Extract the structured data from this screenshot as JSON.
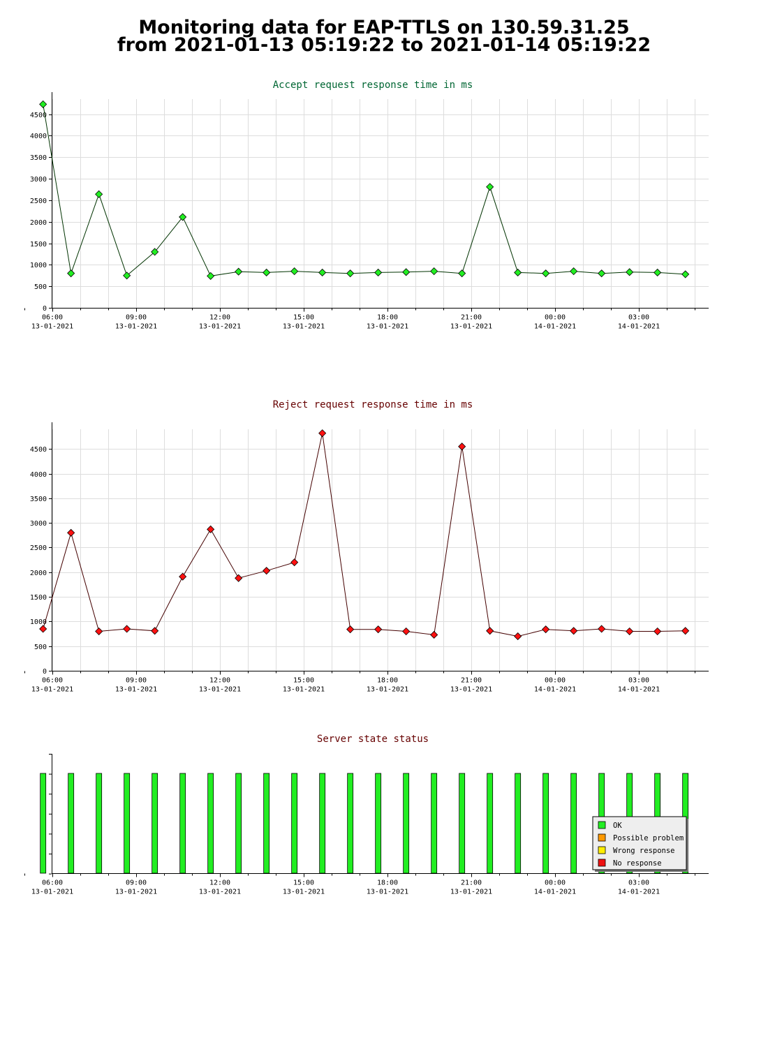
{
  "page": {
    "title_line1": "Monitoring data for EAP-TTLS on 130.59.31.25",
    "title_line2": "from 2021-01-13 05:19:22 to 2021-01-14 05:19:22"
  },
  "colors": {
    "accept_line": "#003300",
    "accept_marker": "#22ee22",
    "accept_title": "#006633",
    "reject_line": "#440000",
    "reject_marker": "#ff1111",
    "reject_title": "#660000",
    "status_title": "#660000",
    "ok": "#22ee22",
    "possible_problem": "#ff9900",
    "wrong_response": "#ffee00",
    "no_response": "#ee1111"
  },
  "chart_data": [
    {
      "id": "accept",
      "type": "line",
      "title": "Accept request response time in ms",
      "x": [
        "2021-01-13 05:40",
        "2021-01-13 06:40",
        "2021-01-13 07:40",
        "2021-01-13 08:40",
        "2021-01-13 09:40",
        "2021-01-13 10:40",
        "2021-01-13 11:40",
        "2021-01-13 12:40",
        "2021-01-13 13:40",
        "2021-01-13 14:40",
        "2021-01-13 15:40",
        "2021-01-13 16:40",
        "2021-01-13 17:40",
        "2021-01-13 18:40",
        "2021-01-13 19:40",
        "2021-01-13 20:40",
        "2021-01-13 21:40",
        "2021-01-13 22:40",
        "2021-01-13 23:40",
        "2021-01-14 00:40",
        "2021-01-14 01:40",
        "2021-01-14 02:40",
        "2021-01-14 03:40",
        "2021-01-14 04:40"
      ],
      "values": [
        4730,
        800,
        2640,
        750,
        1300,
        2110,
        740,
        840,
        820,
        850,
        820,
        800,
        820,
        830,
        850,
        800,
        2810,
        820,
        800,
        850,
        800,
        830,
        820,
        780
      ],
      "ylim": [
        0,
        4850
      ],
      "yticks": [
        0,
        500,
        1000,
        1500,
        2000,
        2500,
        3000,
        3500,
        4000,
        4500
      ],
      "xticks": [
        {
          "time": "06:00",
          "date": "13-01-2021"
        },
        {
          "time": "09:00",
          "date": "13-01-2021"
        },
        {
          "time": "12:00",
          "date": "13-01-2021"
        },
        {
          "time": "15:00",
          "date": "13-01-2021"
        },
        {
          "time": "18:00",
          "date": "13-01-2021"
        },
        {
          "time": "21:00",
          "date": "13-01-2021"
        },
        {
          "time": "00:00",
          "date": "14-01-2021"
        },
        {
          "time": "03:00",
          "date": "14-01-2021"
        }
      ],
      "grid": true
    },
    {
      "id": "reject",
      "type": "line",
      "title": "Reject request response time in ms",
      "x": [
        "2021-01-13 05:40",
        "2021-01-13 06:40",
        "2021-01-13 07:40",
        "2021-01-13 08:40",
        "2021-01-13 09:40",
        "2021-01-13 10:40",
        "2021-01-13 11:40",
        "2021-01-13 12:40",
        "2021-01-13 13:40",
        "2021-01-13 14:40",
        "2021-01-13 15:40",
        "2021-01-13 16:40",
        "2021-01-13 17:40",
        "2021-01-13 18:40",
        "2021-01-13 19:40",
        "2021-01-13 20:40",
        "2021-01-13 21:40",
        "2021-01-13 22:40",
        "2021-01-13 23:40",
        "2021-01-14 00:40",
        "2021-01-14 01:40",
        "2021-01-14 02:40",
        "2021-01-14 03:40",
        "2021-01-14 04:40"
      ],
      "values": [
        850,
        2800,
        800,
        850,
        810,
        1910,
        2870,
        1880,
        2030,
        2200,
        4820,
        840,
        840,
        800,
        730,
        4550,
        810,
        700,
        840,
        810,
        850,
        800,
        800,
        810
      ],
      "ylim": [
        0,
        4900
      ],
      "yticks": [
        0,
        500,
        1000,
        1500,
        2000,
        2500,
        3000,
        3500,
        4000,
        4500
      ],
      "xticks": [
        {
          "time": "06:00",
          "date": "13-01-2021"
        },
        {
          "time": "09:00",
          "date": "13-01-2021"
        },
        {
          "time": "12:00",
          "date": "13-01-2021"
        },
        {
          "time": "15:00",
          "date": "13-01-2021"
        },
        {
          "time": "18:00",
          "date": "13-01-2021"
        },
        {
          "time": "21:00",
          "date": "13-01-2021"
        },
        {
          "time": "00:00",
          "date": "14-01-2021"
        },
        {
          "time": "03:00",
          "date": "14-01-2021"
        }
      ],
      "grid": true
    },
    {
      "id": "status",
      "type": "bar",
      "title": "Server state status",
      "x": [
        "2021-01-13 05:40",
        "2021-01-13 06:40",
        "2021-01-13 07:40",
        "2021-01-13 08:40",
        "2021-01-13 09:40",
        "2021-01-13 10:40",
        "2021-01-13 11:40",
        "2021-01-13 12:40",
        "2021-01-13 13:40",
        "2021-01-13 14:40",
        "2021-01-13 15:40",
        "2021-01-13 16:40",
        "2021-01-13 17:40",
        "2021-01-13 18:40",
        "2021-01-13 19:40",
        "2021-01-13 20:40",
        "2021-01-13 21:40",
        "2021-01-13 22:40",
        "2021-01-13 23:40",
        "2021-01-14 00:40",
        "2021-01-14 01:40",
        "2021-01-14 02:40",
        "2021-01-14 03:40",
        "2021-01-14 04:40"
      ],
      "states": [
        "OK",
        "OK",
        "OK",
        "OK",
        "OK",
        "OK",
        "OK",
        "OK",
        "OK",
        "OK",
        "OK",
        "OK",
        "OK",
        "OK",
        "OK",
        "OK",
        "OK",
        "OK",
        "OK",
        "OK",
        "OK",
        "OK",
        "OK",
        "OK"
      ],
      "legend": [
        {
          "label": "OK",
          "color": "#22ee22"
        },
        {
          "label": "Possible problem",
          "color": "#ff9900"
        },
        {
          "label": "Wrong response",
          "color": "#ffee00"
        },
        {
          "label": "No response",
          "color": "#ee1111"
        }
      ],
      "legend_position": "bottom-right",
      "xticks": [
        {
          "time": "06:00",
          "date": "13-01-2021"
        },
        {
          "time": "09:00",
          "date": "13-01-2021"
        },
        {
          "time": "12:00",
          "date": "13-01-2021"
        },
        {
          "time": "15:00",
          "date": "13-01-2021"
        },
        {
          "time": "18:00",
          "date": "13-01-2021"
        },
        {
          "time": "21:00",
          "date": "13-01-2021"
        },
        {
          "time": "00:00",
          "date": "14-01-2021"
        },
        {
          "time": "03:00",
          "date": "14-01-2021"
        }
      ],
      "grid": false
    }
  ]
}
